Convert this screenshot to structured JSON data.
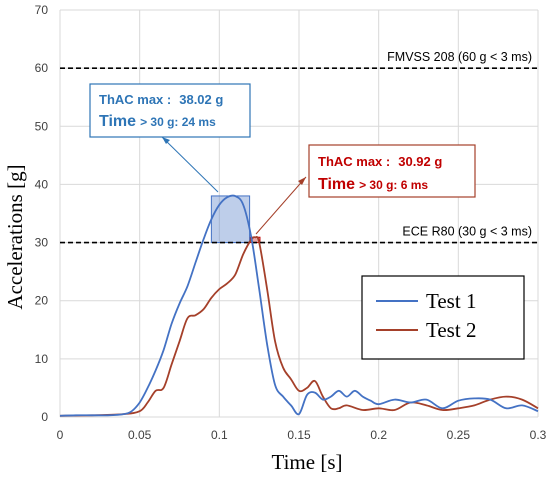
{
  "chart_data": {
    "type": "line",
    "xlabel": "Time [s]",
    "ylabel": "Accelerations [g]",
    "xlim": [
      0,
      0.3
    ],
    "ylim": [
      0,
      70
    ],
    "xticks": [
      "0",
      "0.05",
      "0.1",
      "0.15",
      "0.2",
      "0.25",
      "0.3"
    ],
    "yticks": [
      "0",
      "10",
      "20",
      "30",
      "40",
      "50",
      "60",
      "70"
    ],
    "grid": true,
    "legend_position": "bottom-right",
    "series": [
      {
        "name": "Test 1",
        "color": "#4472C4",
        "x": [
          0,
          0.01,
          0.02,
          0.03,
          0.04,
          0.045,
          0.05,
          0.055,
          0.06,
          0.065,
          0.07,
          0.075,
          0.08,
          0.085,
          0.09,
          0.095,
          0.1,
          0.105,
          0.11,
          0.115,
          0.12,
          0.125,
          0.13,
          0.135,
          0.14,
          0.145,
          0.15,
          0.155,
          0.16,
          0.165,
          0.17,
          0.175,
          0.18,
          0.185,
          0.19,
          0.195,
          0.2,
          0.21,
          0.22,
          0.23,
          0.24,
          0.25,
          0.26,
          0.27,
          0.28,
          0.29,
          0.3
        ],
        "values": [
          0.2,
          0.3,
          0.3,
          0.3,
          0.5,
          1.0,
          2.5,
          5.0,
          8.0,
          11.5,
          16.0,
          19.5,
          22.5,
          26.5,
          30.5,
          34.0,
          36.5,
          37.8,
          38.0,
          36.5,
          31.0,
          22.0,
          12.5,
          5.5,
          3.5,
          2.0,
          0.5,
          3.8,
          4.2,
          3.0,
          3.5,
          4.5,
          3.5,
          4.5,
          3.5,
          2.8,
          2.2,
          3.0,
          2.5,
          3.0,
          1.5,
          2.8,
          3.2,
          3.0,
          1.5,
          2.0,
          1.0
        ]
      },
      {
        "name": "Test 2",
        "color": "#A5402A",
        "x": [
          0,
          0.02,
          0.04,
          0.05,
          0.055,
          0.06,
          0.065,
          0.07,
          0.075,
          0.08,
          0.085,
          0.09,
          0.095,
          0.1,
          0.105,
          0.11,
          0.115,
          0.12,
          0.1225,
          0.125,
          0.13,
          0.135,
          0.14,
          0.145,
          0.15,
          0.155,
          0.16,
          0.165,
          0.17,
          0.175,
          0.18,
          0.19,
          0.2,
          0.21,
          0.22,
          0.23,
          0.24,
          0.25,
          0.26,
          0.27,
          0.28,
          0.29,
          0.3
        ],
        "values": [
          0.2,
          0.3,
          0.5,
          1.0,
          2.5,
          4.5,
          5.0,
          9.0,
          13.0,
          17.0,
          17.5,
          18.5,
          20.5,
          22.0,
          23.0,
          24.5,
          28.0,
          30.5,
          30.9,
          30.0,
          22.0,
          13.0,
          8.5,
          6.5,
          4.5,
          5.0,
          6.2,
          3.5,
          1.5,
          1.5,
          2.0,
          1.2,
          1.5,
          1.2,
          2.5,
          2.0,
          1.2,
          1.5,
          2.0,
          3.0,
          3.5,
          3.0,
          1.5
        ]
      }
    ],
    "reference_lines": [
      {
        "y": 60,
        "label": "FMVSS 208 (60 g < 3 ms)"
      },
      {
        "y": 30,
        "label": "ECE R80 (30 g <  3 ms)"
      }
    ],
    "highlight_regions": [
      {
        "series": "Test 1",
        "x": [
          0.095,
          0.119
        ],
        "y": [
          30,
          38.02
        ]
      },
      {
        "series": "Test 2",
        "x": [
          0.1195,
          0.1255
        ],
        "y": [
          30,
          30.92
        ]
      }
    ],
    "annotations": [
      {
        "series": "Test 1",
        "color": "#2E75B6",
        "line1_label": "ThAC max :",
        "line1_value": "38.02 g",
        "line2_label": "Time",
        "line2_cond": " > 30 g: 24 ms"
      },
      {
        "series": "Test 2",
        "color": "#C00000",
        "line1_label": "ThAC max :",
        "line1_value": "30.92 g",
        "line2_label": "Time",
        "line2_cond": " > 30 g: 6 ms"
      }
    ]
  }
}
